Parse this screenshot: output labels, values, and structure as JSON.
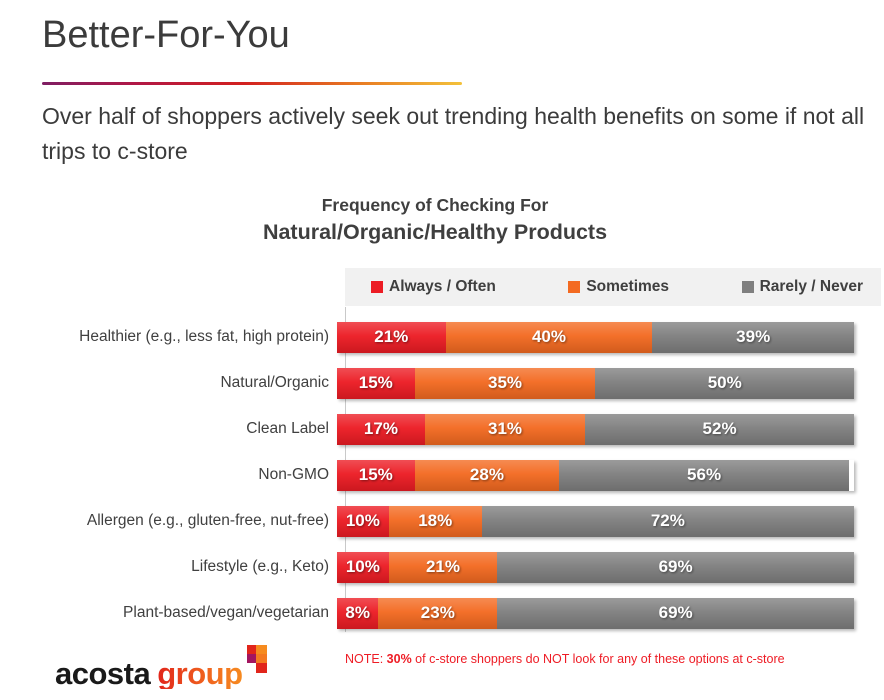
{
  "page": {
    "title": "Better-For-You",
    "subtitle": "Over half of shoppers actively seek out trending health benefits on some if not all trips to c-store"
  },
  "chart_data": {
    "type": "bar",
    "orientation": "horizontal-stacked",
    "title_line1": "Frequency of Checking For",
    "title_line2": "Natural/Organic/Healthy Products",
    "legend_position": "top",
    "xlim": [
      0,
      100
    ],
    "value_suffix": "%",
    "categories": [
      "Healthier (e.g., less fat, high protein)",
      "Natural/Organic",
      "Clean Label",
      "Non-GMO",
      "Allergen (e.g., gluten-free, nut-free)",
      "Lifestyle (e.g., Keto)",
      "Plant-based/vegan/vegetarian"
    ],
    "series": [
      {
        "name": "Always / Often",
        "slug": "always-often",
        "color": "#ec1c24",
        "values": [
          21,
          15,
          17,
          15,
          10,
          10,
          8
        ]
      },
      {
        "name": "Sometimes",
        "slug": "sometimes",
        "color": "#f36a21",
        "values": [
          40,
          35,
          31,
          28,
          18,
          21,
          23
        ]
      },
      {
        "name": "Rarely / Never",
        "slug": "rarely-never",
        "color": "#7f7f7f",
        "values": [
          39,
          50,
          52,
          56,
          72,
          69,
          69
        ]
      }
    ]
  },
  "footer": {
    "logo_text_black": "acosta",
    "logo_text_gradient": "group",
    "logo_mark": [
      {
        "row": 1,
        "col": 1,
        "color": "#e1251b"
      },
      {
        "row": 1,
        "col": 2,
        "color": "#f68b1f"
      },
      {
        "row": 2,
        "col": 1,
        "color": "#a3155f"
      },
      {
        "row": 2,
        "col": 2,
        "color": "#f47920"
      },
      {
        "row": 3,
        "col": 2,
        "color": "#e1251b"
      }
    ],
    "note_prefix": "NOTE: ",
    "note_bold": "30%",
    "note_rest": " of c-store shoppers do NOT look for any of these options at c-store"
  },
  "colors": {
    "title_text": "#3b3b3b",
    "chart_text": "#3f3f3f",
    "legend_background": "#f1f1f1",
    "axis_line": "#c9c9c9",
    "note_red": "#ee1c25",
    "underline_gradient": [
      "#7e1e63",
      "#d2201f",
      "#f3c13a"
    ]
  }
}
